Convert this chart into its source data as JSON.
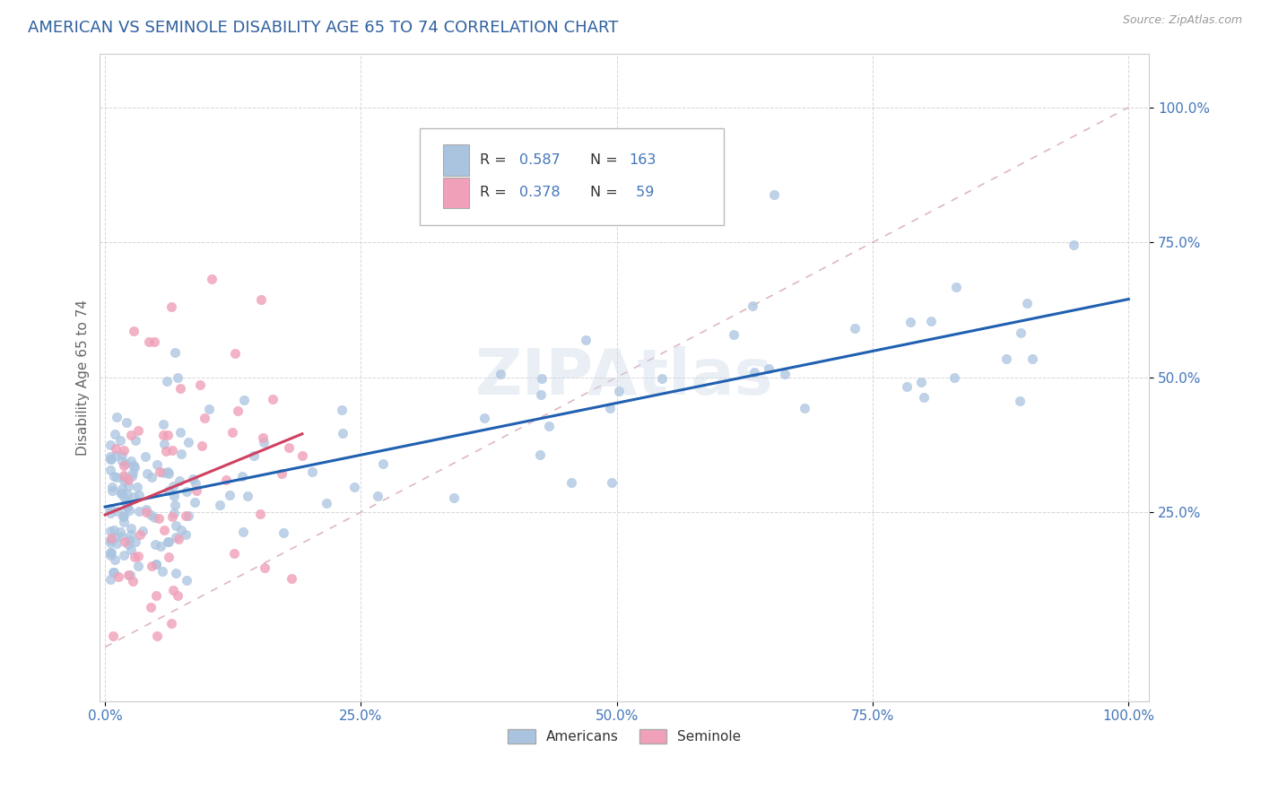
{
  "title": "AMERICAN VS SEMINOLE DISABILITY AGE 65 TO 74 CORRELATION CHART",
  "source": "Source: ZipAtlas.com",
  "ylabel": "Disability Age 65 to 74",
  "americans_color": "#aac4e0",
  "seminole_color": "#f0a0b8",
  "americans_line_color": "#2060b0",
  "seminole_line_color": "#d04060",
  "diagonal_color": "#dbb0b8",
  "R_americans": 0.587,
  "N_americans": 163,
  "R_seminole": 0.378,
  "N_seminole": 59,
  "watermark": "ZIPAtlas",
  "legend_americans_label": "Americans",
  "legend_seminole_label": "Seminole",
  "title_color": "#3060a0",
  "title_fontsize": 13,
  "axis_label_color": "#666666",
  "tick_label_color": "#4477bb",
  "background_color": "#ffffff"
}
